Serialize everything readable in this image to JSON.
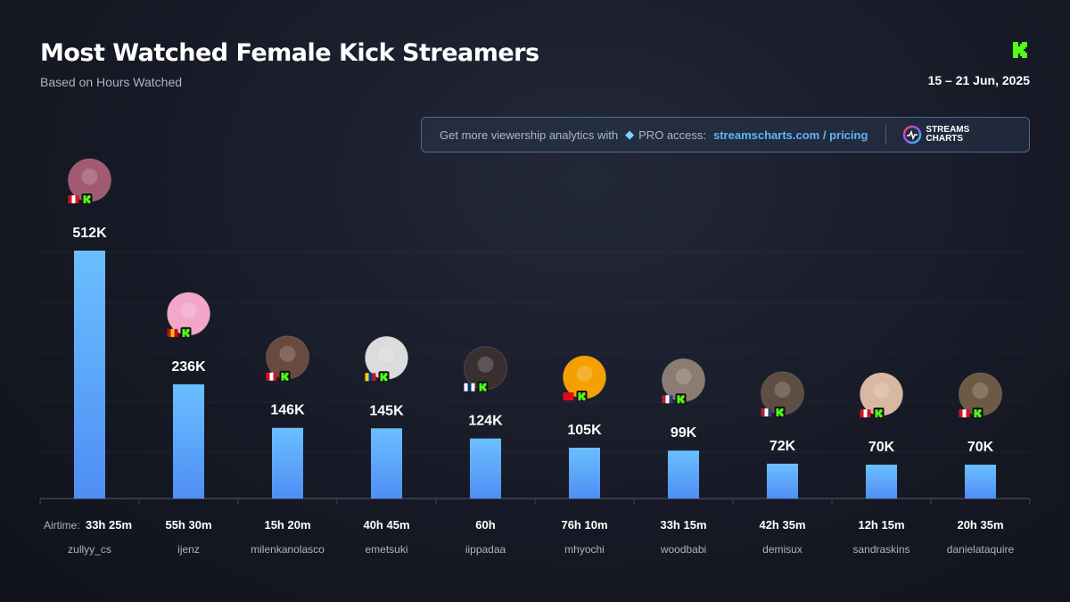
{
  "header": {
    "title": "Most Watched Female Kick Streamers",
    "subtitle": "Based on Hours Watched",
    "date_range": "15 – 21 Jun, 2025",
    "logo_icon": "kick-logo-icon"
  },
  "promo": {
    "text": "Get more viewership analytics with",
    "diamond_icon": "diamond-icon",
    "pro": "PRO access:",
    "link": "streamscharts.com / pricing",
    "brand_line1": "STREAMS",
    "brand_line2": "CHARTS"
  },
  "colors": {
    "bar_top": "#6bbfff",
    "bar_bottom": "#4f8ef5",
    "kick_green": "#53fc18",
    "axis": "#3e4457"
  },
  "airtime_label": "Airtime:",
  "chart_data": {
    "type": "bar",
    "title": "Most Watched Female Kick Streamers",
    "subtitle": "Based on Hours Watched",
    "ylim": [
      0,
      512000
    ],
    "grid": true,
    "categories": [
      "zullyy_cs",
      "ijenz",
      "milenkanolasco",
      "emetsuki",
      "iippadaa",
      "mhyochi",
      "woodbabi",
      "demisux",
      "sandraskins",
      "danielataquire"
    ],
    "values": [
      512000,
      236000,
      146000,
      145000,
      124000,
      105000,
      99000,
      72000,
      70000,
      70000
    ],
    "value_labels": [
      "512K",
      "236K",
      "146K",
      "145K",
      "124K",
      "105K",
      "99K",
      "72K",
      "70K",
      "70K"
    ],
    "airtime": [
      "33h 25m",
      "55h 30m",
      "15h 20m",
      "40h 45m",
      "60h",
      "76h 10m",
      "33h 15m",
      "42h 35m",
      "12h 15m",
      "20h 35m"
    ],
    "flags": [
      "peru-flag-icon",
      "spain-flag-icon",
      "peru-flag-icon",
      "colombia-flag-icon",
      "finland-flag-icon",
      "turkey-flag-icon",
      "usa-flag-icon",
      "usa-flag-icon",
      "peru-flag-icon",
      "peru-flag-icon"
    ]
  }
}
